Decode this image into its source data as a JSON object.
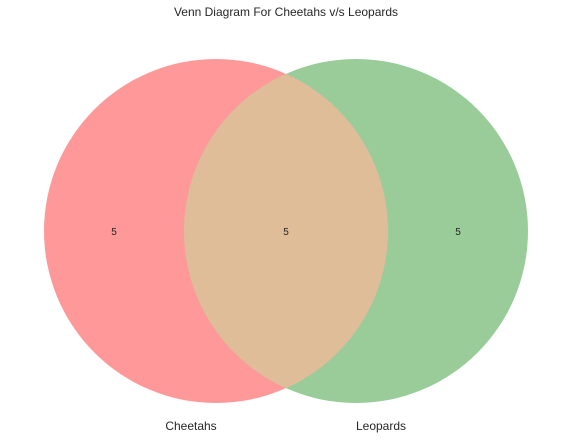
{
  "chart_data": {
    "type": "venn",
    "title": "Venn Diagram For Cheetahs v/s Leopards",
    "sets": [
      {
        "name": "Cheetahs",
        "color": "#ff9999",
        "only_count": "5"
      },
      {
        "name": "Leopards",
        "color": "#99cc99",
        "only_count": "5"
      }
    ],
    "intersection": {
      "count": "5",
      "color": "#e0bd99"
    }
  }
}
